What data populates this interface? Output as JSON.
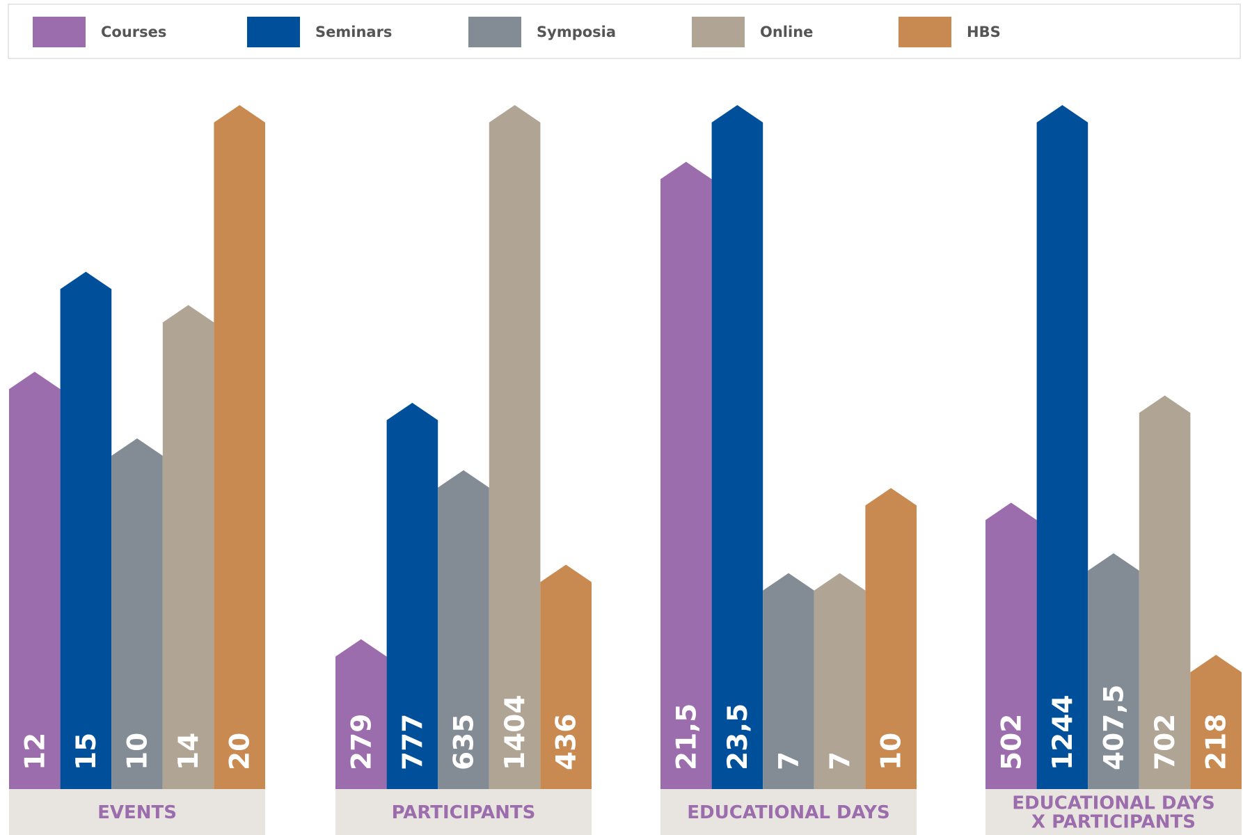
{
  "legend": [
    {
      "label": "Courses",
      "color": "#9c6dac"
    },
    {
      "label": "Seminars",
      "color": "#004f9b"
    },
    {
      "label": "Symposia",
      "color": "#838c94"
    },
    {
      "label": "Online",
      "color": "#b0a495"
    },
    {
      "label": "HBS",
      "color": "#c88a51"
    }
  ],
  "chart_data": {
    "type": "bar",
    "bar_style": "arrow-topped columns, values printed vertically inside each bar",
    "axes": "none (no gridlines, each group scaled to its own maximum)",
    "legend_position": "top",
    "series_names": [
      "Courses",
      "Seminars",
      "Symposia",
      "Online",
      "HBS"
    ],
    "groups": [
      {
        "label_lines": [
          "EVENTS"
        ],
        "values": [
          12,
          15,
          10,
          14,
          20
        ],
        "value_labels": [
          "12",
          "15",
          "10",
          "14",
          "20"
        ]
      },
      {
        "label_lines": [
          "PARTICIPANTS"
        ],
        "values": [
          279,
          777,
          635,
          1404,
          436
        ],
        "value_labels": [
          "279",
          "777",
          "635",
          "1404",
          "436"
        ]
      },
      {
        "label_lines": [
          "EDUCATIONAL DAYS"
        ],
        "values": [
          21.5,
          23.5,
          7,
          7,
          10
        ],
        "value_labels": [
          "21,5",
          "23,5",
          "7",
          "7",
          "10"
        ]
      },
      {
        "label_lines": [
          "EDUCATIONAL DAYS",
          "X PARTICIPANTS"
        ],
        "values": [
          502,
          1244,
          407.5,
          702,
          218
        ],
        "value_labels": [
          "502",
          "1244",
          "407,5",
          "702",
          "218"
        ]
      }
    ],
    "label_band_color": "#e8e4df",
    "label_text_color": "#9c6dac"
  }
}
